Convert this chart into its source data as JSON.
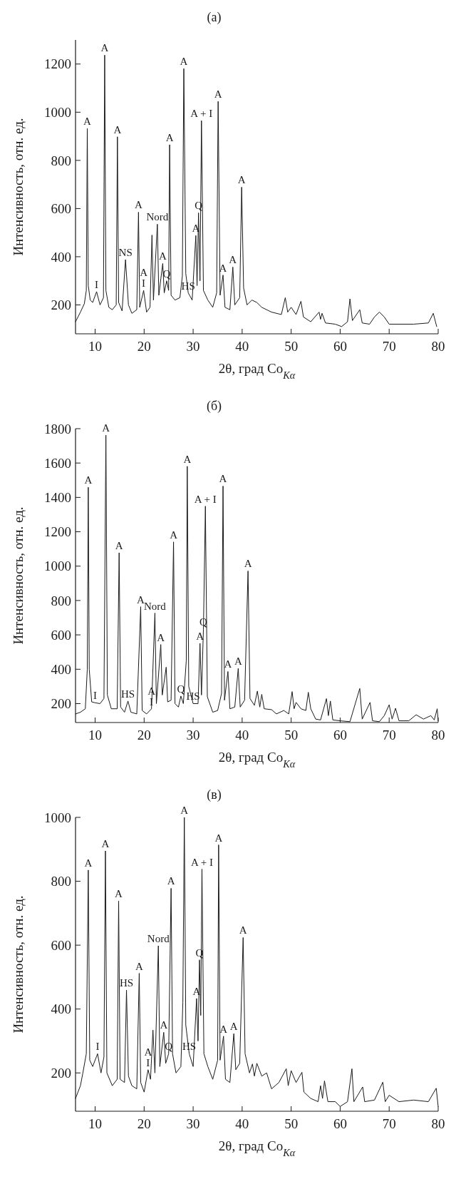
{
  "chart_data": [
    {
      "type": "line",
      "title": "(a)",
      "xlabel": "2θ, град Co$_{Kα}$",
      "ylabel": "Интенсивность, отн. ед.",
      "xlim": [
        6,
        80
      ],
      "ylim": [
        80,
        1300
      ],
      "xticks": [
        10,
        20,
        30,
        40,
        50,
        60,
        70,
        80
      ],
      "yticks": [
        200,
        400,
        600,
        800,
        1000,
        1200
      ],
      "grid": false,
      "series": [
        {
          "color": "#1a1a1a",
          "x": [
            6,
            7,
            7.8,
            8.2,
            8.4,
            8.6,
            9,
            9.5,
            10.3,
            11,
            11.7,
            11.95,
            12.2,
            12.8,
            13.5,
            14.3,
            14.55,
            14.8,
            15.5,
            16.2,
            16.8,
            17.5,
            18.5,
            18.85,
            19.1,
            19.9,
            20.5,
            21.2,
            21.6,
            21.9,
            22.7,
            23,
            23.8,
            24.1,
            24.6,
            25,
            25.2,
            25.5,
            26.3,
            27.3,
            27.8,
            28.1,
            28.5,
            29,
            29.8,
            30.55,
            30.8,
            31.1,
            31.4,
            31.7,
            32.1,
            33,
            34,
            34.8,
            35.1,
            35.5,
            36.1,
            36.5,
            37.5,
            38.1,
            38.5,
            39.5,
            39.9,
            40.3,
            41,
            42,
            43,
            44,
            46,
            48,
            48.8,
            49.3,
            50,
            51,
            52,
            52.5,
            54,
            55.7,
            56,
            56.3,
            57,
            59,
            60.3,
            61.5,
            62,
            62.5,
            64,
            64.5,
            66,
            67,
            68,
            69,
            70,
            72,
            75,
            78,
            79,
            79.7
          ],
          "values": [
            130,
            170,
            205,
            260,
            932,
            280,
            220,
            210,
            255,
            200,
            230,
            1237,
            260,
            190,
            180,
            200,
            898,
            210,
            175,
            388,
            200,
            165,
            180,
            585,
            190,
            260,
            170,
            190,
            490,
            220,
            535,
            240,
            372,
            250,
            300,
            260,
            865,
            240,
            220,
            230,
            320,
            1181,
            330,
            250,
            220,
            488,
            280,
            582,
            300,
            965,
            260,
            220,
            190,
            250,
            1045,
            240,
            324,
            190,
            180,
            357,
            200,
            230,
            689,
            270,
            200,
            220,
            210,
            190,
            170,
            160,
            230,
            170,
            190,
            160,
            215,
            150,
            130,
            170,
            140,
            165,
            125,
            120,
            110,
            130,
            225,
            135,
            180,
            125,
            120,
            150,
            170,
            150,
            120,
            120,
            120,
            125,
            165,
            110
          ]
        }
      ],
      "annotations": [
        {
          "text": "A",
          "x": 8.4,
          "y": 932
        },
        {
          "text": "A",
          "x": 11.95,
          "y": 1237
        },
        {
          "text": "A",
          "x": 14.55,
          "y": 898
        },
        {
          "text": "I",
          "x": 10.3,
          "y": 255
        },
        {
          "text": "NS",
          "x": 16.2,
          "y": 388
        },
        {
          "text": "A",
          "x": 18.85,
          "y": 585
        },
        {
          "text": "Nord",
          "x": 22.7,
          "y": 535
        },
        {
          "text": "I",
          "x": 19.9,
          "y": 260
        },
        {
          "text": "A",
          "x": 19.9,
          "y": 260
        },
        {
          "text": "A",
          "x": 23.8,
          "y": 372
        },
        {
          "text": "Q",
          "x": 24.6,
          "y": 300
        },
        {
          "text": "HS",
          "x": 29,
          "y": 250
        },
        {
          "text": "A",
          "x": 25.2,
          "y": 865
        },
        {
          "text": "A",
          "x": 28.1,
          "y": 1181
        },
        {
          "text": "Q",
          "x": 31.1,
          "y": 582
        },
        {
          "text": "A",
          "x": 30.55,
          "y": 488
        },
        {
          "text": "A + I",
          "x": 31.7,
          "y": 965
        },
        {
          "text": "A",
          "x": 35.1,
          "y": 1045
        },
        {
          "text": "A",
          "x": 36.1,
          "y": 324
        },
        {
          "text": "A",
          "x": 38.1,
          "y": 357
        },
        {
          "text": "A",
          "x": 39.9,
          "y": 689
        }
      ]
    },
    {
      "type": "line",
      "title": "(б)",
      "xlabel": "2θ, град Co$_{Kα}$",
      "ylabel": "Интенсивность, отн. ед.",
      "xlim": [
        6,
        80
      ],
      "ylim": [
        90,
        1800
      ],
      "xticks": [
        10,
        20,
        30,
        40,
        50,
        60,
        70,
        80
      ],
      "yticks": [
        200,
        400,
        600,
        800,
        1000,
        1200,
        1400,
        1600,
        1800
      ],
      "grid": false,
      "series": [
        {
          "color": "#1a1a1a",
          "x": [
            6,
            7,
            8,
            8.4,
            8.6,
            8.8,
            9.3,
            10,
            11,
            11.8,
            12.2,
            12.5,
            13.3,
            14.5,
            14.9,
            15.2,
            16,
            16.7,
            17.3,
            18.5,
            19.3,
            19.6,
            20.5,
            21.5,
            22.2,
            22.5,
            23.4,
            23.7,
            24.5,
            24.8,
            25.5,
            26,
            26.3,
            27,
            27.5,
            28,
            28.6,
            28.8,
            29.1,
            30,
            31,
            31.4,
            31.7,
            32.1,
            32.5,
            32.9,
            34,
            35,
            35.8,
            36.1,
            36.4,
            37.1,
            37.5,
            38.5,
            39.2,
            39.6,
            40.5,
            41.2,
            41.6,
            42.5,
            43.1,
            43.6,
            44,
            44.5,
            46,
            47,
            48.5,
            49.5,
            50.2,
            50.6,
            51,
            52,
            53,
            53.5,
            54,
            55,
            56,
            57.2,
            57.6,
            58,
            58.5,
            60,
            62,
            64,
            64.5,
            66.1,
            66.6,
            68,
            69,
            70,
            70.6,
            71.3,
            72,
            74,
            75.5,
            77,
            78.5,
            79.2,
            79.8,
            80
          ],
          "values": [
            140,
            150,
            170,
            400,
            1459,
            400,
            210,
            205,
            200,
            230,
            1762,
            250,
            170,
            170,
            1078,
            180,
            150,
            215,
            150,
            140,
            764,
            160,
            140,
            170,
            727,
            200,
            544,
            250,
            412,
            210,
            220,
            1141,
            200,
            180,
            244,
            200,
            450,
            1581,
            300,
            200,
            200,
            551,
            250,
            632,
            1349,
            240,
            150,
            160,
            260,
            1466,
            220,
            387,
            170,
            180,
            405,
            180,
            220,
            972,
            230,
            190,
            273,
            180,
            254,
            170,
            165,
            140,
            160,
            140,
            270,
            170,
            207,
            170,
            160,
            266,
            170,
            110,
            105,
            229,
            130,
            215,
            105,
            100,
            95,
            288,
            110,
            207,
            100,
            95,
            130,
            193,
            110,
            173,
            100,
            100,
            135,
            110,
            130,
            105,
            170,
            100
          ]
        }
      ],
      "annotations": [
        {
          "text": "A",
          "x": 8.6,
          "y": 1459
        },
        {
          "text": "A",
          "x": 12.2,
          "y": 1762
        },
        {
          "text": "A",
          "x": 14.9,
          "y": 1078
        },
        {
          "text": "I",
          "x": 10,
          "y": 205
        },
        {
          "text": "HS",
          "x": 16.7,
          "y": 215
        },
        {
          "text": "A",
          "x": 19.3,
          "y": 764
        },
        {
          "text": "Nord",
          "x": 22.2,
          "y": 727
        },
        {
          "text": "I",
          "x": 21.5,
          "y": 170
        },
        {
          "text": "A",
          "x": 21.5,
          "y": 170
        },
        {
          "text": "A",
          "x": 23.4,
          "y": 544
        },
        {
          "text": "Q",
          "x": 27.5,
          "y": 244
        },
        {
          "text": "HS",
          "x": 30,
          "y": 200
        },
        {
          "text": "A",
          "x": 26,
          "y": 1141
        },
        {
          "text": "A",
          "x": 28.8,
          "y": 1581
        },
        {
          "text": "A",
          "x": 31.4,
          "y": 551
        },
        {
          "text": "Q",
          "x": 32.1,
          "y": 632
        },
        {
          "text": "A + I",
          "x": 32.5,
          "y": 1349
        },
        {
          "text": "A",
          "x": 36.1,
          "y": 1466
        },
        {
          "text": "A",
          "x": 37.1,
          "y": 387
        },
        {
          "text": "A",
          "x": 39.2,
          "y": 405
        },
        {
          "text": "A",
          "x": 41.2,
          "y": 972
        }
      ]
    },
    {
      "type": "line",
      "title": "(в)",
      "xlabel": "2θ, град Co$_{Kα}$",
      "ylabel": "Интенсивность, отн. ед.",
      "xlim": [
        6,
        80
      ],
      "ylim": [
        80,
        1000
      ],
      "xticks": [
        10,
        20,
        30,
        40,
        50,
        60,
        70,
        80
      ],
      "yticks": [
        200,
        400,
        600,
        800,
        1000
      ],
      "grid": false,
      "series": [
        {
          "color": "#1a1a1a",
          "x": [
            6,
            7,
            7.5,
            8.2,
            8.6,
            8.9,
            9.5,
            10.5,
            11.2,
            11.8,
            12.1,
            12.4,
            13.5,
            14.5,
            14.8,
            15.1,
            16,
            16.4,
            16.8,
            17.5,
            18.5,
            19,
            19.3,
            20,
            20.8,
            21.3,
            21.8,
            22.2,
            22.9,
            23.2,
            24,
            24.4,
            25,
            25.5,
            25.8,
            26.5,
            27.5,
            27.9,
            28.2,
            28.5,
            29.2,
            30,
            30.7,
            31,
            31.3,
            31.55,
            31.8,
            32.2,
            33,
            34,
            35,
            35.2,
            35.5,
            36.2,
            36.6,
            37.5,
            38.3,
            38.7,
            39.5,
            40.2,
            40.6,
            41.5,
            42.1,
            42.5,
            43,
            44,
            45,
            46,
            47.5,
            49,
            49.4,
            50,
            51,
            52.2,
            52.6,
            54,
            55.5,
            56,
            56.4,
            56.8,
            57.5,
            59,
            60,
            61.5,
            62.4,
            62.8,
            64.6,
            65,
            67,
            68.7,
            69.2,
            70,
            72,
            75,
            78,
            79.6,
            80
          ],
          "values": [
            120,
            160,
            200,
            260,
            835,
            240,
            220,
            260,
            200,
            250,
            895,
            200,
            160,
            180,
            738,
            180,
            170,
            459,
            190,
            160,
            150,
            512,
            170,
            140,
            210,
            180,
            334,
            200,
            598,
            220,
            327,
            230,
            260,
            778,
            260,
            200,
            220,
            420,
            1000,
            350,
            260,
            220,
            433,
            300,
            554,
            380,
            838,
            260,
            220,
            180,
            240,
            914,
            240,
            315,
            180,
            170,
            323,
            210,
            230,
            624,
            260,
            200,
            228,
            190,
            230,
            190,
            200,
            150,
            170,
            213,
            160,
            207,
            170,
            202,
            140,
            120,
            110,
            160,
            120,
            175,
            110,
            110,
            95,
            110,
            213,
            110,
            156,
            110,
            115,
            171,
            110,
            130,
            110,
            115,
            110,
            152,
            95
          ]
        }
      ],
      "annotations": [
        {
          "text": "A",
          "x": 8.6,
          "y": 835
        },
        {
          "text": "A",
          "x": 12.1,
          "y": 895
        },
        {
          "text": "A",
          "x": 14.8,
          "y": 738
        },
        {
          "text": "I",
          "x": 10.5,
          "y": 260
        },
        {
          "text": "HS",
          "x": 16.4,
          "y": 459
        },
        {
          "text": "A",
          "x": 19,
          "y": 512
        },
        {
          "text": "Nord",
          "x": 22.9,
          "y": 598
        },
        {
          "text": "I",
          "x": 20.8,
          "y": 210
        },
        {
          "text": "A",
          "x": 20.8,
          "y": 210
        },
        {
          "text": "A",
          "x": 24,
          "y": 327
        },
        {
          "text": "Q",
          "x": 25,
          "y": 260
        },
        {
          "text": "HS",
          "x": 29.2,
          "y": 260
        },
        {
          "text": "A",
          "x": 25.5,
          "y": 778
        },
        {
          "text": "A",
          "x": 28.2,
          "y": 1000
        },
        {
          "text": "A",
          "x": 30.7,
          "y": 433
        },
        {
          "text": "Q",
          "x": 31.3,
          "y": 554
        },
        {
          "text": "A + I",
          "x": 31.8,
          "y": 838
        },
        {
          "text": "A",
          "x": 35.2,
          "y": 914
        },
        {
          "text": "A",
          "x": 36.2,
          "y": 315
        },
        {
          "text": "A",
          "x": 38.3,
          "y": 323
        },
        {
          "text": "A",
          "x": 40.2,
          "y": 624
        }
      ]
    }
  ]
}
